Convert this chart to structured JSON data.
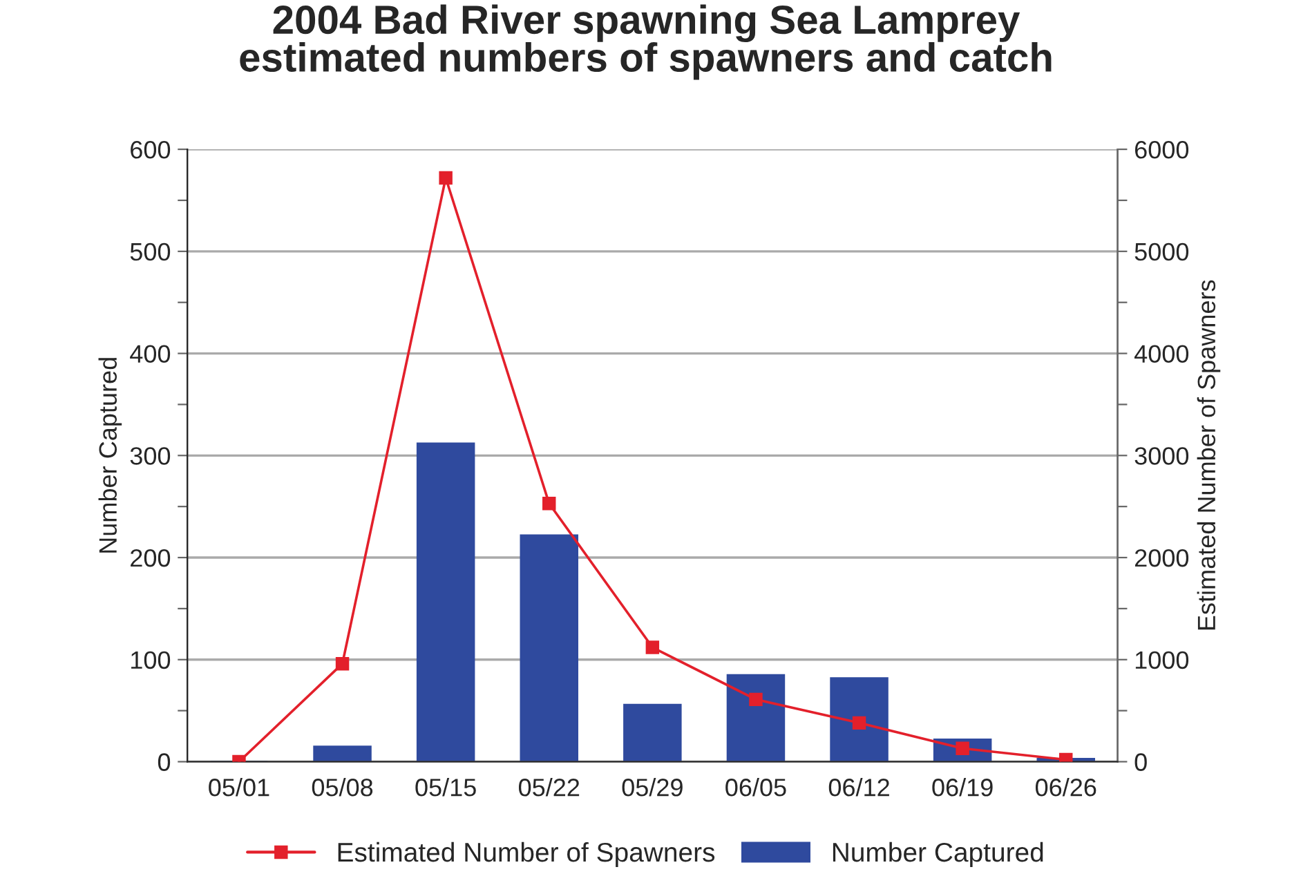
{
  "chart_data": {
    "type": "bar",
    "title": "2004 Bad River spawning Sea Lamprey\nestimated numbers of spawners and catch",
    "categories": [
      "05/01",
      "05/08",
      "05/15",
      "05/22",
      "05/29",
      "06/05",
      "06/12",
      "06/19",
      "06/26"
    ],
    "series": [
      {
        "name": "Estimated Number of Spawners",
        "type": "line",
        "axis": "y2",
        "color": "#e3202b",
        "marker": "square",
        "values": [
          0,
          960,
          5720,
          2530,
          1120,
          610,
          380,
          130,
          20
        ]
      },
      {
        "name": "Number Captured",
        "color": "#2f4a9e",
        "values": [
          0,
          15,
          312,
          222,
          56,
          85,
          82,
          22,
          3
        ]
      }
    ],
    "ylabel": "Number Captured",
    "y2label": "Estimated Number of Spawners",
    "ylim": [
      0,
      600
    ],
    "yticks": [
      0,
      {
        "value": 50,
        "label": null
      },
      100,
      {
        "value": 150,
        "label": null
      },
      200,
      {
        "value": 250,
        "label": null
      },
      300,
      {
        "value": 350,
        "label": null
      },
      400,
      {
        "value": 450,
        "label": null
      },
      500,
      {
        "value": 550,
        "label": null
      },
      600
    ],
    "y2lim": [
      0,
      6000
    ],
    "y2ticks": [
      0,
      {
        "value": 500,
        "label": null
      },
      1000,
      {
        "value": 1500,
        "label": null
      },
      2000,
      {
        "value": 2500,
        "label": null
      },
      3000,
      {
        "value": 3500,
        "label": null
      },
      4000,
      {
        "value": 4500,
        "label": null
      },
      5000,
      {
        "value": 5500,
        "label": null
      },
      6000
    ],
    "grid": "y",
    "legend": "bottom"
  }
}
